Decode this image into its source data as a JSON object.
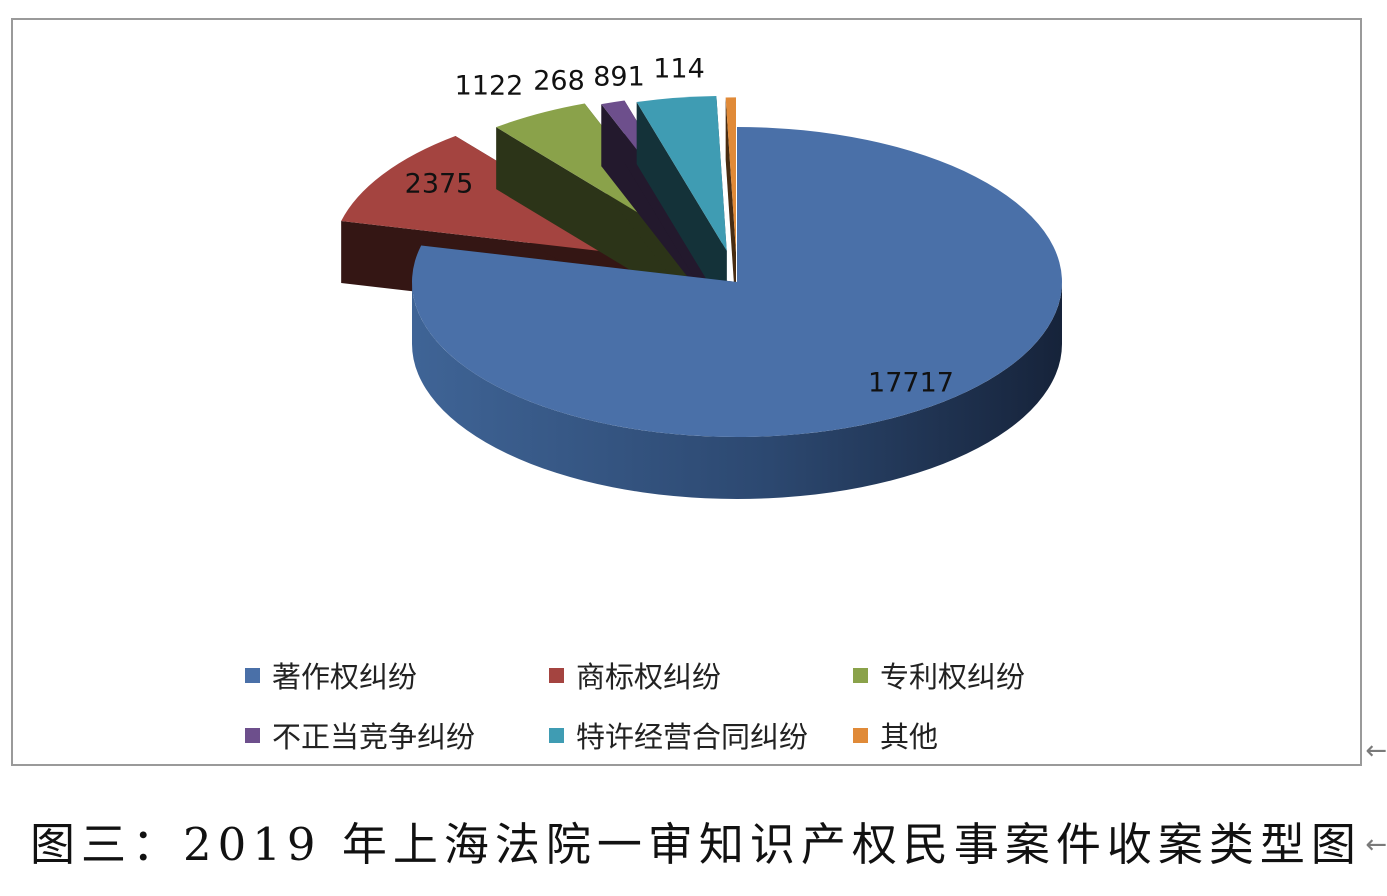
{
  "chart_data": {
    "type": "pie",
    "categories": [
      "著作权纠纷",
      "商标权纠纷",
      "专利权纠纷",
      "不正当竞争纠纷",
      "特许经营合同纠纷",
      "其他"
    ],
    "values": [
      17717,
      2375,
      1122,
      268,
      891,
      114
    ],
    "data_labels": [
      "17717",
      "2375",
      "1122",
      "268",
      "891",
      "114"
    ],
    "colors": [
      "#4a70a8",
      "#a44440",
      "#8aa24a",
      "#6d4f8c",
      "#3f9cb3",
      "#e08a38"
    ],
    "legend_placement": "bottom"
  },
  "caption": "图三：2019 年上海法院一审知识产权民事案件收案类型图",
  "side_marks": [
    "←",
    "←"
  ]
}
